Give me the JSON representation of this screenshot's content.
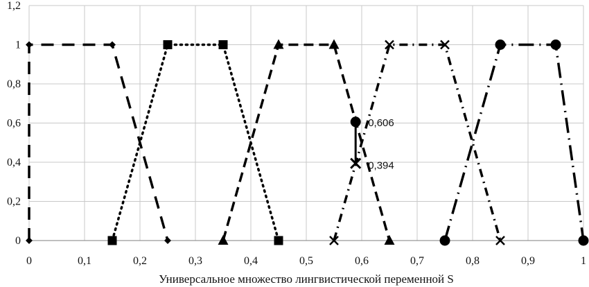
{
  "chart_data": {
    "type": "line",
    "title": "",
    "xlabel": "Универсальное множество лингвистической переменной S",
    "ylabel": "",
    "xlim": [
      0,
      1
    ],
    "ylim": [
      0,
      1.2
    ],
    "xticks": [
      0,
      0.1,
      0.2,
      0.3,
      0.4,
      0.5,
      0.6,
      0.7,
      0.8,
      0.9,
      1
    ],
    "xtick_labels": [
      "0",
      "0,1",
      "0,2",
      "0,3",
      "0,4",
      "0,5",
      "0,6",
      "0,7",
      "0,8",
      "0,9",
      "1"
    ],
    "yticks": [
      0,
      0.2,
      0.4,
      0.6,
      0.8,
      1,
      1.2
    ],
    "ytick_labels": [
      "0",
      "0,2",
      "0,4",
      "0,6",
      "0,8",
      "1",
      "1,2"
    ],
    "grid": true,
    "legend": "none",
    "series": [
      {
        "marker": "diamond",
        "dash": "longdash",
        "x": [
          0,
          0,
          0.15,
          0.25
        ],
        "y": [
          0,
          1,
          1,
          0
        ]
      },
      {
        "marker": "square",
        "dash": "dot",
        "x": [
          0.15,
          0.25,
          0.35,
          0.45
        ],
        "y": [
          0,
          1,
          1,
          0
        ]
      },
      {
        "marker": "triangle",
        "dash": "dash",
        "x": [
          0.35,
          0.45,
          0.55,
          0.65
        ],
        "y": [
          0,
          1,
          1,
          0
        ]
      },
      {
        "marker": "cross",
        "dash": "dashdot",
        "x": [
          0.55,
          0.65,
          0.75,
          0.85
        ],
        "y": [
          0,
          1,
          1,
          0
        ]
      },
      {
        "marker": "circle",
        "dash": "longdashdot",
        "x": [
          0.75,
          0.85,
          0.95,
          1
        ],
        "y": [
          0,
          1,
          1,
          0
        ]
      }
    ],
    "highlight": {
      "x": 0.589,
      "y_top": 0.606,
      "y_bottom": 0.394,
      "label_top": "0,606",
      "label_bottom": "0,394"
    }
  }
}
